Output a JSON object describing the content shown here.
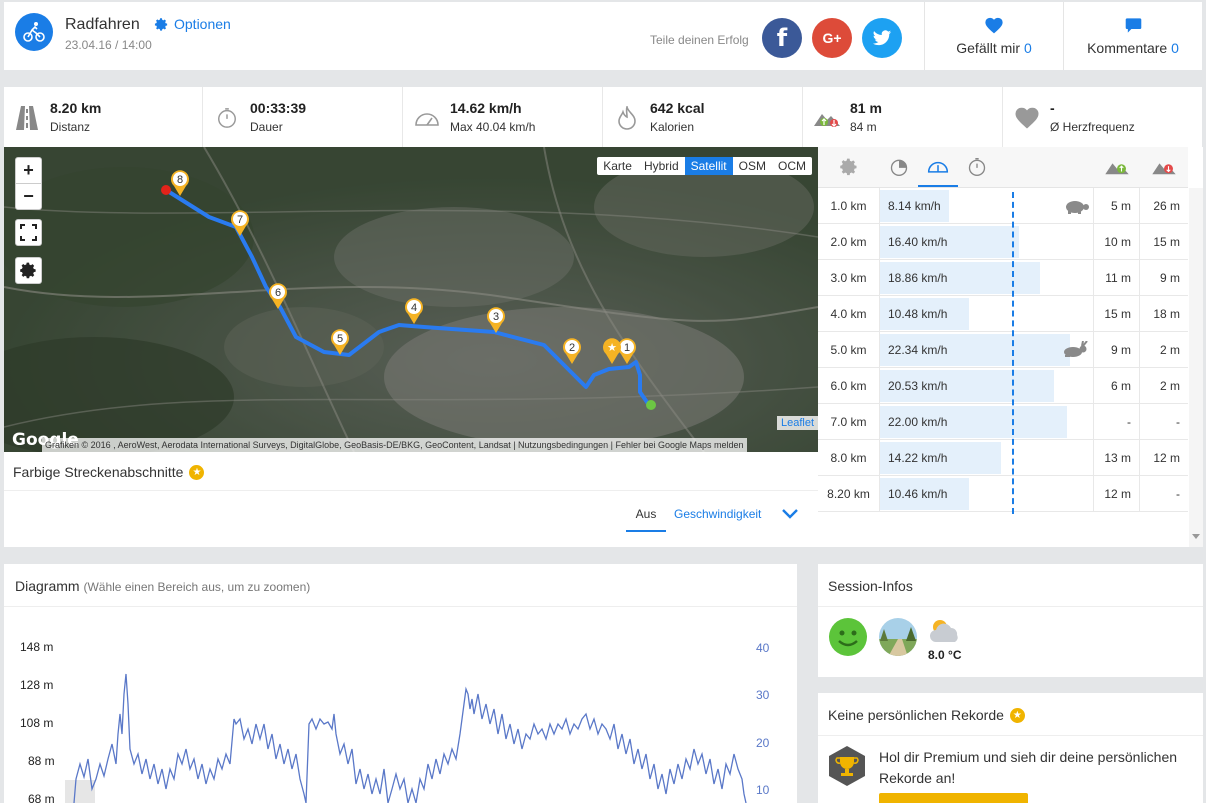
{
  "header": {
    "title": "Radfahren",
    "date": "23.04.16 / 14:00",
    "options_label": "Optionen",
    "share_label": "Teile deinen Erfolg",
    "like_label": "Gefällt mir",
    "like_count": "0",
    "comments_label": "Kommentare",
    "comments_count": "0"
  },
  "stats": [
    {
      "value": "8.20 km",
      "sub": "Distanz",
      "icon": "road-icon"
    },
    {
      "value": "00:33:39",
      "sub": "Dauer",
      "icon": "stopwatch-icon"
    },
    {
      "value": "14.62 km/h",
      "sub": "Max 40.04 km/h",
      "icon": "speedometer-icon"
    },
    {
      "value": "642 kcal",
      "sub": "Kalorien",
      "icon": "flame-icon"
    },
    {
      "value": "81 m",
      "sub": "84 m",
      "icon": "elevation-icon"
    },
    {
      "value": "-",
      "sub": "Ø Herzfrequenz",
      "icon": "heart-icon"
    }
  ],
  "map": {
    "zoom_in": "+",
    "zoom_out": "−",
    "layers": [
      "Karte",
      "Hybrid",
      "Satellit",
      "OSM",
      "OCM"
    ],
    "active_layer": "Satellit",
    "attribution": "Grafiken © 2016 , AeroWest, Aerodata International Surveys, DigitalGlobe, GeoBasis-DE/BKG, GeoContent, Landsat | Nutzungsbedingungen | Fehler bei Google Maps melden",
    "leaflet": "Leaflet",
    "google": "Google",
    "markers": [
      "1",
      "2",
      "3",
      "4",
      "5",
      "6",
      "7",
      "8"
    ]
  },
  "segments": {
    "title": "Farbige Streckenabschnitte",
    "tab_off": "Aus",
    "tab_speed": "Geschwindigkeit"
  },
  "splits": {
    "rows": [
      {
        "km": "1.0 km",
        "speed": "8.14 km/h",
        "speed_value": 8.14,
        "up": "5 m",
        "down": "26 m",
        "badge": "turtle"
      },
      {
        "km": "2.0 km",
        "speed": "16.40 km/h",
        "speed_value": 16.4,
        "up": "10 m",
        "down": "15 m",
        "badge": ""
      },
      {
        "km": "3.0 km",
        "speed": "18.86 km/h",
        "speed_value": 18.86,
        "up": "11 m",
        "down": "9 m",
        "badge": ""
      },
      {
        "km": "4.0 km",
        "speed": "10.48 km/h",
        "speed_value": 10.48,
        "up": "15 m",
        "down": "18 m",
        "badge": ""
      },
      {
        "km": "5.0 km",
        "speed": "22.34 km/h",
        "speed_value": 22.34,
        "up": "9 m",
        "down": "2 m",
        "badge": "rabbit"
      },
      {
        "km": "6.0 km",
        "speed": "20.53 km/h",
        "speed_value": 20.53,
        "up": "6 m",
        "down": "2 m",
        "badge": ""
      },
      {
        "km": "7.0 km",
        "speed": "22.00 km/h",
        "speed_value": 22.0,
        "up": "-",
        "down": "-",
        "badge": ""
      },
      {
        "km": "8.0 km",
        "speed": "14.22 km/h",
        "speed_value": 14.22,
        "up": "13 m",
        "down": "12 m",
        "badge": ""
      },
      {
        "km": "8.20 km",
        "speed": "10.46 km/h",
        "speed_value": 10.46,
        "up": "12 m",
        "down": "-",
        "badge": ""
      }
    ]
  },
  "diagram": {
    "title": "Diagramm",
    "hint": "(Wähle einen Bereich aus, um zu zoomen)",
    "left_ticks": [
      "148 m",
      "128 m",
      "108 m",
      "88 m",
      "68 m"
    ],
    "right_ticks": [
      "40",
      "30",
      "20",
      "10"
    ]
  },
  "session": {
    "title": "Session-Infos",
    "temperature": "8.0 °C"
  },
  "records": {
    "title": "Keine persönlichen Rekorde",
    "text": "Hol dir Premium und sieh dir deine persönlichen Rekorde an!"
  },
  "colors": {
    "accent": "#1a7de6",
    "facebook": "#3b5998",
    "google": "#dd4b39",
    "twitter": "#1da1f2",
    "route": "#2a7bf0",
    "marker": "#f5b324",
    "star": "#f0b400"
  }
}
